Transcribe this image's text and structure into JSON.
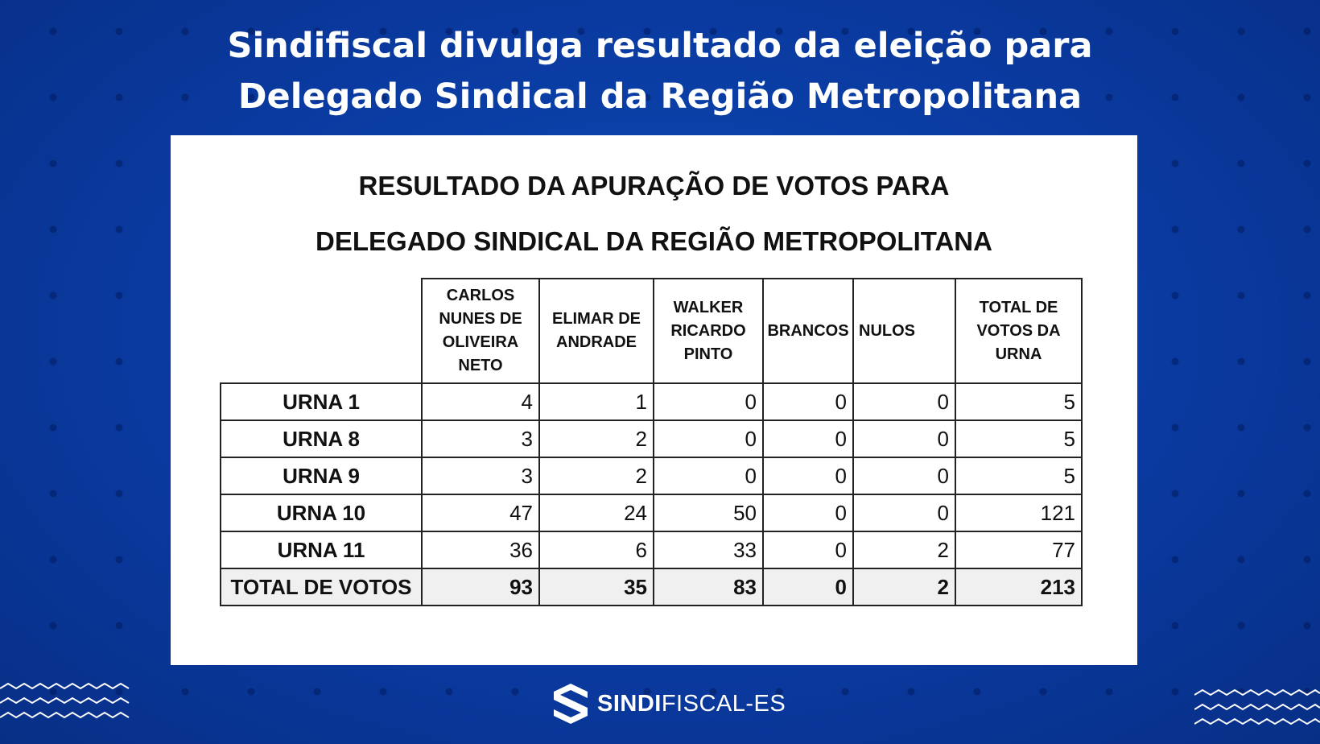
{
  "headline": {
    "line1": "Sindifiscal divulga resultado da eleição para",
    "line2": "Delegado Sindical da Região Metropolitana"
  },
  "panel": {
    "title_line1": "RESULTADO DA APURAÇÃO DE VOTOS PARA",
    "title_line2": "DELEGADO SINDICAL DA REGIÃO METROPOLITANA"
  },
  "table": {
    "headers": [
      "CARLOS NUNES DE OLIVEIRA NETO",
      "ELIMAR DE ANDRADE",
      "WALKER RICARDO PINTO",
      "BRANCOS",
      "NULOS",
      "TOTAL DE VOTOS DA URNA"
    ],
    "rows": [
      {
        "label": "URNA 1",
        "values": [
          "4",
          "1",
          "0",
          "0",
          "0",
          "5"
        ]
      },
      {
        "label": "URNA 8",
        "values": [
          "3",
          "2",
          "0",
          "0",
          "0",
          "5"
        ]
      },
      {
        "label": "URNA 9",
        "values": [
          "3",
          "2",
          "0",
          "0",
          "0",
          "5"
        ]
      },
      {
        "label": "URNA 10",
        "values": [
          "47",
          "24",
          "50",
          "0",
          "0",
          "121"
        ]
      },
      {
        "label": "URNA 11",
        "values": [
          "36",
          "6",
          "33",
          "0",
          "2",
          "77"
        ]
      }
    ],
    "total": {
      "label": "TOTAL DE VOTOS",
      "values": [
        "93",
        "35",
        "83",
        "0",
        "2",
        "213"
      ]
    }
  },
  "logo": {
    "bold": "SINDI",
    "light": "FISCAL-ES"
  },
  "colors": {
    "background": "#0a3aa0",
    "panel": "#ffffff",
    "total_row": "#f0f0f0"
  }
}
